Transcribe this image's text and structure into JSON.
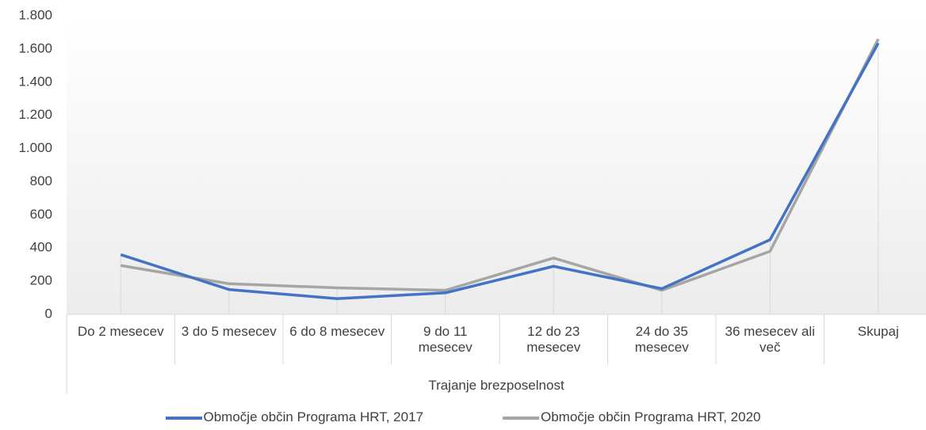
{
  "chart_data": {
    "type": "line",
    "x_label": "Trajanje brezposelnost",
    "categories": [
      "Do 2 mesecev",
      "3 do 5 mesecev",
      "6 do 8 mesecev",
      "9 do 11 mesecev",
      "12 do 23 mesecev",
      "24 do 35 mesecev",
      "36 mesecev ali več",
      "Skupaj"
    ],
    "series": [
      {
        "name": "Območje občin Programa HRT, 2017",
        "color": "#4472c4",
        "values": [
          360,
          150,
          95,
          130,
          290,
          155,
          450,
          1635
        ]
      },
      {
        "name": "Območje občin Programa HRT, 2020",
        "color": "#a5a5a5",
        "values": [
          295,
          185,
          160,
          145,
          340,
          145,
          380,
          1660
        ]
      }
    ],
    "ylim": [
      0,
      1800
    ],
    "yticks": [
      0,
      200,
      400,
      600,
      800,
      {
        "value": 1000,
        "label": "1.000"
      },
      {
        "value": 1200,
        "label": "1.200"
      },
      {
        "value": 1400,
        "label": "1.400"
      },
      {
        "value": 1600,
        "label": "1.600"
      },
      {
        "value": 1800,
        "label": "1.800"
      }
    ]
  }
}
